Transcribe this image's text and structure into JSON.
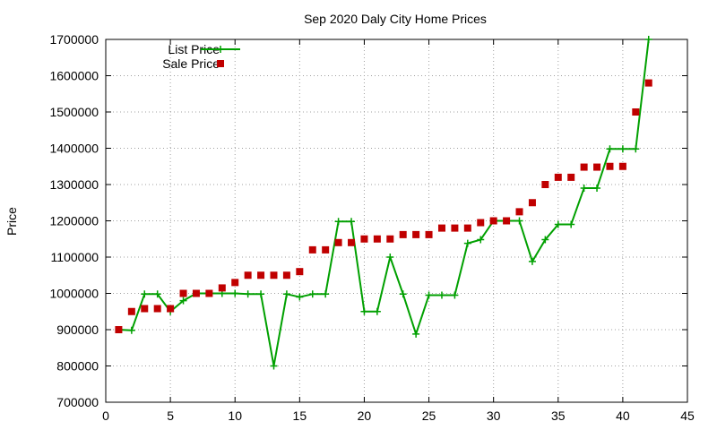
{
  "chart_data": {
    "type": "line",
    "title": "Sep 2020 Daly City Home Prices",
    "xlabel": "",
    "ylabel": "Price",
    "xlim": [
      0,
      45
    ],
    "ylim": [
      700000,
      1700000
    ],
    "xticks": [
      0,
      5,
      10,
      15,
      20,
      25,
      30,
      35,
      40,
      45
    ],
    "yticks": [
      700000,
      800000,
      900000,
      1000000,
      1100000,
      1200000,
      1300000,
      1400000,
      1500000,
      1600000,
      1700000
    ],
    "grid": true,
    "legend_position": "top-left",
    "series": [
      {
        "name": "List Price",
        "style": "line-with-plus-markers",
        "color": "#00a000",
        "x": [
          1,
          2,
          3,
          4,
          5,
          6,
          7,
          8,
          9,
          10,
          11,
          12,
          13,
          14,
          15,
          16,
          17,
          18,
          19,
          20,
          21,
          22,
          23,
          24,
          25,
          26,
          27,
          28,
          29,
          30,
          31,
          32,
          33,
          34,
          35,
          36,
          37,
          38,
          39,
          40,
          41,
          42
        ],
        "values": [
          900000,
          898000,
          998000,
          998000,
          950000,
          980000,
          1000000,
          1000000,
          1000000,
          1000000,
          998000,
          998000,
          800000,
          998000,
          990000,
          998000,
          998000,
          1198000,
          1198000,
          950000,
          950000,
          1100000,
          998000,
          888000,
          995000,
          995000,
          995000,
          1138000,
          1148000,
          1200000,
          1200000,
          1200000,
          1088000,
          1148000,
          1190000,
          1190000,
          1290000,
          1290000,
          1398000,
          1398000,
          1398000,
          1700000
        ]
      },
      {
        "name": "Sale Price",
        "style": "square-markers",
        "color": "#c00000",
        "x": [
          1,
          2,
          3,
          4,
          5,
          6,
          7,
          8,
          9,
          10,
          11,
          12,
          13,
          14,
          15,
          16,
          17,
          18,
          19,
          20,
          21,
          22,
          23,
          24,
          25,
          26,
          27,
          28,
          29,
          30,
          31,
          32,
          33,
          34,
          35,
          36,
          37,
          38,
          39,
          40,
          41,
          42
        ],
        "values": [
          900000,
          950000,
          958000,
          958000,
          958000,
          1000000,
          1000000,
          1000000,
          1015000,
          1030000,
          1050000,
          1050000,
          1050000,
          1050000,
          1060000,
          1120000,
          1120000,
          1140000,
          1140000,
          1150000,
          1150000,
          1150000,
          1162000,
          1162000,
          1162000,
          1180000,
          1180000,
          1180000,
          1195000,
          1200000,
          1200000,
          1225000,
          1250000,
          1300000,
          1320000,
          1320000,
          1348000,
          1348000,
          1350000,
          1350000,
          1500000,
          1580000
        ]
      }
    ]
  }
}
